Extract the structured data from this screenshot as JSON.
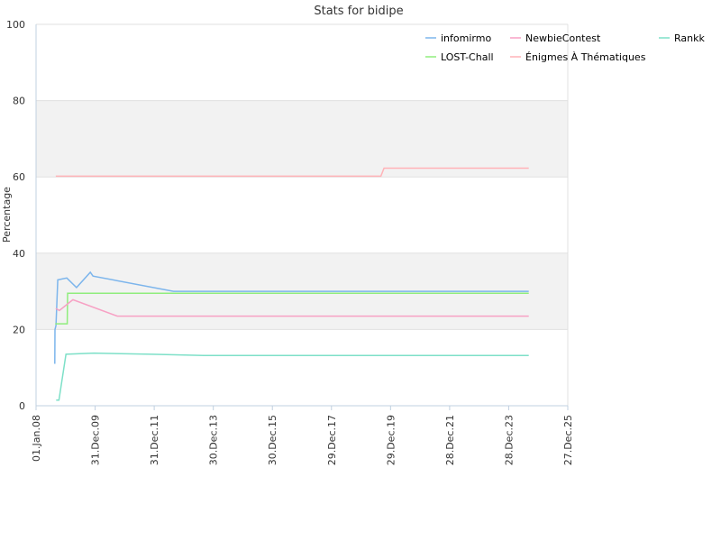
{
  "chart_data": {
    "type": "line",
    "title": "Stats for bidipe",
    "xlabel": "",
    "ylabel": "Percentage",
    "ylim": [
      0,
      100
    ],
    "yticks": [
      0,
      20,
      40,
      60,
      80,
      100
    ],
    "xlim": [
      "2008-01-01",
      "2025-12-27"
    ],
    "xticks": [
      {
        "date": "2008-01-01",
        "label": "01.Jan.08"
      },
      {
        "date": "2009-12-31",
        "label": "31.Dec.09"
      },
      {
        "date": "2011-12-31",
        "label": "31.Dec.11"
      },
      {
        "date": "2013-12-30",
        "label": "30.Dec.13"
      },
      {
        "date": "2015-12-30",
        "label": "30.Dec.15"
      },
      {
        "date": "2017-12-29",
        "label": "29.Dec.17"
      },
      {
        "date": "2019-12-29",
        "label": "29.Dec.19"
      },
      {
        "date": "2021-12-28",
        "label": "28.Dec.21"
      },
      {
        "date": "2023-12-28",
        "label": "28.Dec.23"
      },
      {
        "date": "2025-12-27",
        "label": "27.Dec.25"
      }
    ],
    "grid": true,
    "alternating_bands": true,
    "legend_position": "top-right",
    "series": [
      {
        "name": "infomirmo",
        "color": "#7cb5ec",
        "points": [
          [
            "2008-08-20",
            11
          ],
          [
            "2008-08-22",
            20
          ],
          [
            "2008-09-03",
            21
          ],
          [
            "2008-09-25",
            33
          ],
          [
            "2009-01-15",
            33.5
          ],
          [
            "2009-05-15",
            31
          ],
          [
            "2009-11-01",
            35
          ],
          [
            "2009-12-05",
            34
          ],
          [
            "2012-08-25",
            30
          ],
          [
            "2024-09-01",
            30
          ]
        ]
      },
      {
        "name": "LOST-Chall",
        "color": "#90ed7d",
        "points": [
          [
            "2008-08-25",
            21.5
          ],
          [
            "2009-01-20",
            21.5
          ],
          [
            "2009-01-25",
            29.5
          ],
          [
            "2024-09-01",
            29.5
          ]
        ]
      },
      {
        "name": "NewbieContest",
        "color": "#f7a1c4",
        "points": [
          [
            "2008-09-01",
            25.5
          ],
          [
            "2008-10-15",
            25
          ],
          [
            "2009-04-01",
            27.8
          ],
          [
            "2010-10-01",
            23.5
          ],
          [
            "2024-09-01",
            23.5
          ]
        ]
      },
      {
        "name": "Énigmes À Thématiques",
        "color": "#ffb3b8",
        "points": [
          [
            "2008-09-01",
            60.2
          ],
          [
            "2019-09-01",
            60.2
          ],
          [
            "2019-10-10",
            62.3
          ],
          [
            "2024-09-01",
            62.3
          ]
        ]
      },
      {
        "name": "Rankk",
        "color": "#7ee0c8",
        "points": [
          [
            "2008-09-05",
            1.5
          ],
          [
            "2008-10-10",
            1.5
          ],
          [
            "2009-01-05",
            13.5
          ],
          [
            "2009-12-15",
            13.8
          ],
          [
            "2011-12-01",
            13.5
          ],
          [
            "2013-09-01",
            13.2
          ],
          [
            "2024-09-01",
            13.2
          ]
        ]
      }
    ]
  }
}
